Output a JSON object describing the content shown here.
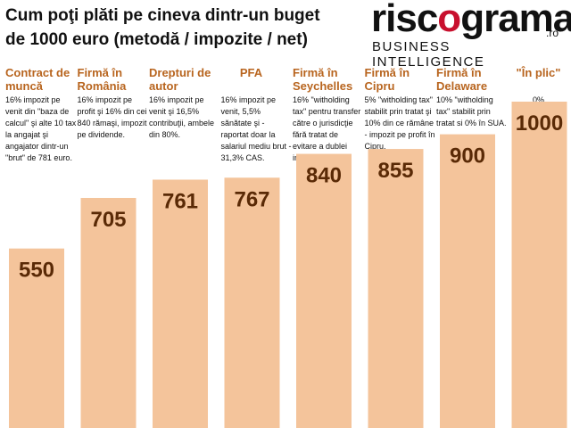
{
  "title_line1": "Cum poţi plăti pe cineva dintr-un buget",
  "title_line2": "de 1000 euro (metodă / impozite / net)",
  "logo": {
    "word_a": "risc",
    "word_o": "o",
    "word_b": "grama",
    "ro": ".ro",
    "subtitle": "BUSINESS INTELLIGENCE"
  },
  "colors": {
    "bar": "#f4c49b",
    "heading": "#b8651f",
    "value": "#5a2a06",
    "logo_accent": "#c8102e"
  },
  "chart_data": {
    "type": "bar",
    "ylim": [
      0,
      1000
    ],
    "categories": [
      "Contract de muncă",
      "Firmă în România",
      "Drepturi de autor",
      "PFA",
      "Firmă în Seychelles",
      "Firmă în Cipru",
      "Firmă în Delaware",
      "\"În plic\""
    ],
    "values": [
      550,
      705,
      761,
      767,
      840,
      855,
      900,
      1000
    ],
    "data_labels": [
      "550",
      "705",
      "761",
      "767",
      "840",
      "855",
      "900",
      "1000"
    ],
    "descriptions": [
      "16% impozit pe venit din \"baza de calcul\" şi alte 10 tax la angajat şi angajator dintr-un \"brut\" de 781 euro.",
      "16% impozit pe profit şi 16% din cei 840 rămaşi, impozit pe dividende.",
      "16% impozit pe venit şi 16,5% contribuţii, ambele din 80%.",
      "16% impozit pe venit, 5,5% sănătate şi - raportat doar la salariul mediu brut - 31,3% CAS.",
      "16% \"witholding tax\" pentru transfer către o jurisdicţie fără tratat de evitare a dublei impuneri.",
      "5% \"witholding tax\" stabilit prin tratat şi 10% din ce rămâne - impozit pe profit în Cipru.",
      "10% \"witholding tax\" stabilit prin tratat si 0% în SUA.",
      "0%"
    ]
  }
}
